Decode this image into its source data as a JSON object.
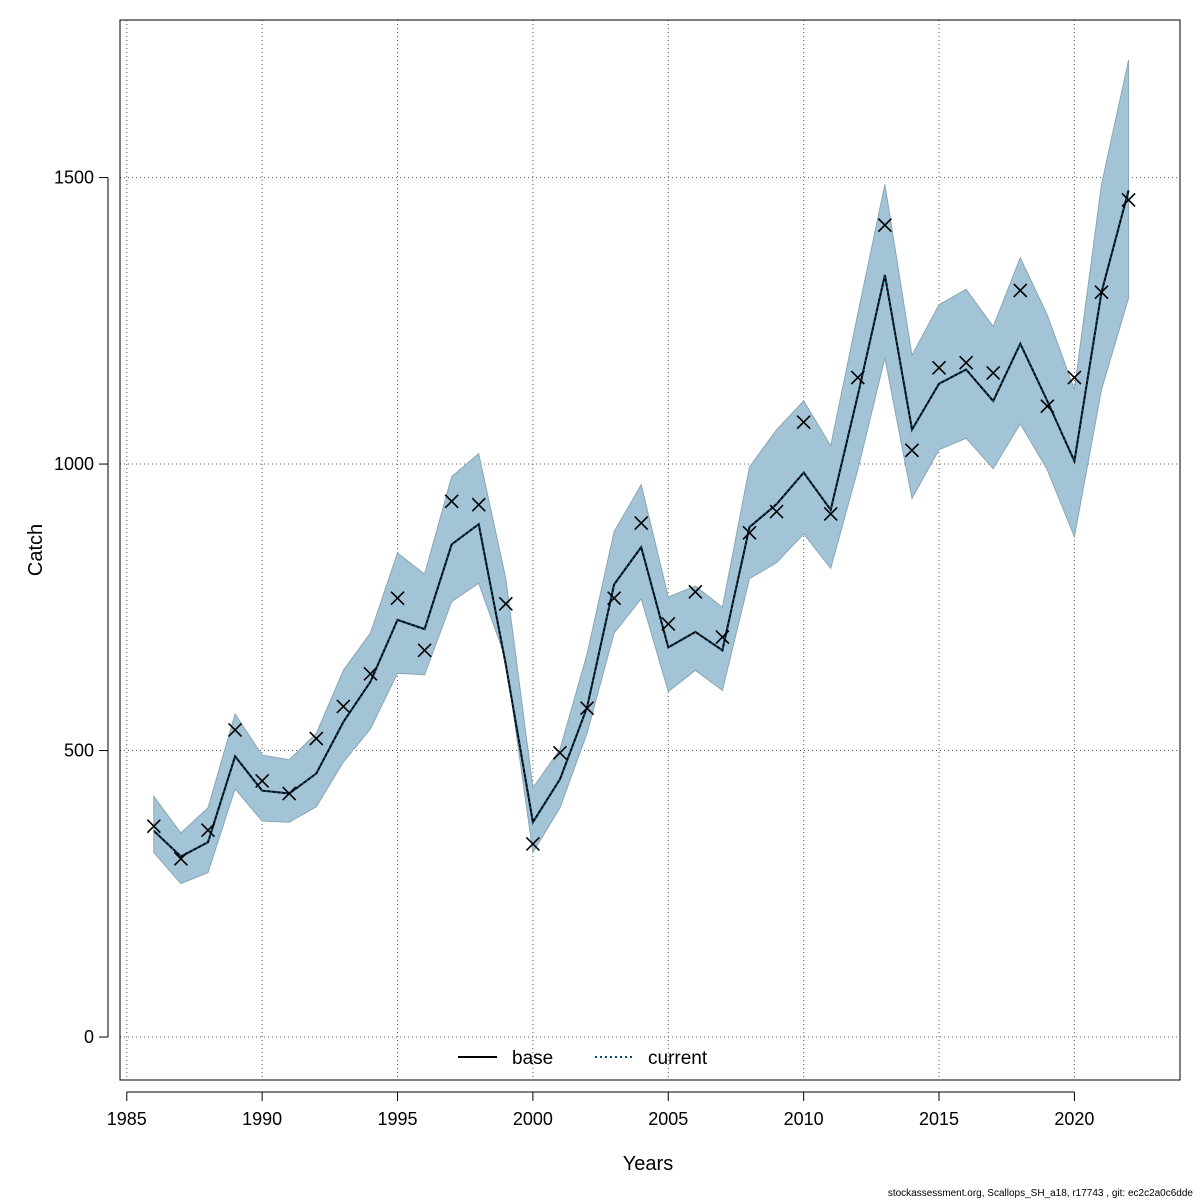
{
  "chart_data": {
    "type": "line",
    "xlabel": "Years",
    "ylabel": "Catch",
    "xlim": [
      1984.6,
      1985.0
    ],
    "x_range": [
      1984.7,
      1987.0
    ],
    "x_ticks": [
      1985,
      1990,
      1995,
      2000,
      2005,
      2010,
      2015,
      2020
    ],
    "y_ticks": [
      0,
      500,
      1000,
      1500
    ],
    "grid": true,
    "legend_position": "bottom-center",
    "band_color": "#a3c4d6",
    "band_edge_color": "#8aa6b4",
    "base_color": "#000000",
    "current_color": "#0c4a6e",
    "marker_color": "#000000",
    "legend": [
      {
        "label": "base",
        "style": "solid"
      },
      {
        "label": "current",
        "style": "dotted"
      }
    ],
    "x": [
      1986,
      1987,
      1988,
      1989,
      1990,
      1991,
      1992,
      1993,
      1994,
      1995,
      1996,
      1997,
      1998,
      1999,
      2000,
      2001,
      2002,
      2003,
      2004,
      2005,
      2006,
      2007,
      2008,
      2009,
      2010,
      2011,
      2012,
      2013,
      2014,
      2015,
      2016,
      2017,
      2018,
      2019,
      2020,
      2021,
      2022
    ],
    "observed": [
      368,
      311,
      361,
      536,
      447,
      425,
      521,
      577,
      634,
      766,
      675,
      935,
      929,
      756,
      337,
      496,
      574,
      766,
      897,
      721,
      777,
      698,
      880,
      917,
      1073,
      913,
      1151,
      1417,
      1024,
      1168,
      1177,
      1159,
      1303,
      1101,
      1151,
      1300,
      1461
    ],
    "series": [
      {
        "name": "base",
        "values": [
          360,
          315,
          340,
          490,
          430,
          425,
          460,
          550,
          620,
          728,
          712,
          860,
          895,
          650,
          375,
          450,
          575,
          790,
          855,
          680,
          707,
          675,
          890,
          930,
          985,
          920,
          1120,
          1330,
          1060,
          1140,
          1165,
          1110,
          1210,
          1110,
          1005,
          1300,
          1478
        ]
      },
      {
        "name": "current",
        "values": [
          360,
          315,
          340,
          490,
          430,
          425,
          460,
          550,
          620,
          728,
          712,
          860,
          895,
          650,
          375,
          450,
          575,
          790,
          855,
          680,
          707,
          675,
          890,
          930,
          985,
          920,
          1120,
          1330,
          1060,
          1140,
          1165,
          1110,
          1210,
          1110,
          1005,
          1300,
          1478
        ]
      }
    ],
    "band_upper": [
      420,
      356,
      400,
      564,
      492,
      484,
      530,
      640,
      705,
      845,
      808,
      978,
      1018,
      800,
      435,
      502,
      668,
      882,
      964,
      768,
      787,
      750,
      995,
      1060,
      1110,
      1032,
      1262,
      1488,
      1190,
      1278,
      1305,
      1240,
      1360,
      1260,
      1130,
      1488,
      1705
    ],
    "band_lower": [
      322,
      268,
      287,
      433,
      377,
      375,
      402,
      480,
      538,
      635,
      632,
      760,
      792,
      660,
      322,
      400,
      530,
      705,
      765,
      603,
      640,
      605,
      800,
      828,
      878,
      818,
      990,
      1185,
      940,
      1025,
      1045,
      992,
      1070,
      990,
      873,
      1130,
      1290
    ]
  },
  "footer": "stockassessment.org, Scallops_SH_a18, r17743 , git: ec2c2a0c6dde"
}
